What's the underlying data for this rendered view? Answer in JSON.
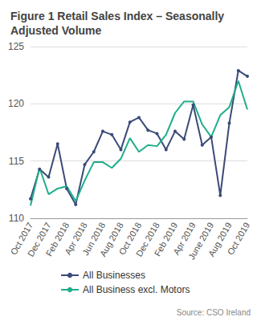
{
  "chart_data": {
    "type": "line",
    "title": "Figure 1 Retail Sales Index – Seasonally Adjusted Volume",
    "source": "Source: CSO Ireland",
    "categories": [
      "Oct 2017",
      null,
      "Dec 2017",
      null,
      "Feb 2018",
      null,
      "Apr 2018",
      null,
      "Jun 2018",
      null,
      "Aug 2018",
      null,
      "Oct 2018",
      null,
      "Dec 2018",
      null,
      "Feb 2019",
      null,
      "Apr 2019",
      null,
      "June 2019",
      null,
      "Aug 2019",
      null,
      "Oct 2019"
    ],
    "series": [
      {
        "name": "All Businesses",
        "color": "#3b4a78",
        "marker": "circle",
        "values": [
          111.7,
          114.3,
          113.6,
          116.5,
          112.6,
          111.2,
          114.7,
          115.8,
          117.6,
          117.3,
          116.0,
          118.4,
          118.8,
          117.7,
          117.4,
          116.0,
          117.6,
          116.9,
          119.9,
          116.4,
          117.1,
          112.0,
          118.3,
          122.9,
          122.4
        ]
      },
      {
        "name": "All Business excl. Motors",
        "color": "#1fae8a",
        "marker": "none",
        "values": [
          111.1,
          114.4,
          112.1,
          112.6,
          112.8,
          111.5,
          113.3,
          114.9,
          114.9,
          114.4,
          115.2,
          117.0,
          115.8,
          116.4,
          116.3,
          117.3,
          119.2,
          120.2,
          120.2,
          118.2,
          117.1,
          119.0,
          119.7,
          122.0,
          119.5
        ]
      }
    ],
    "ylim": [
      110,
      125
    ],
    "yticks": [
      110,
      115,
      120,
      125
    ],
    "grid": true,
    "legend": "bottom"
  }
}
